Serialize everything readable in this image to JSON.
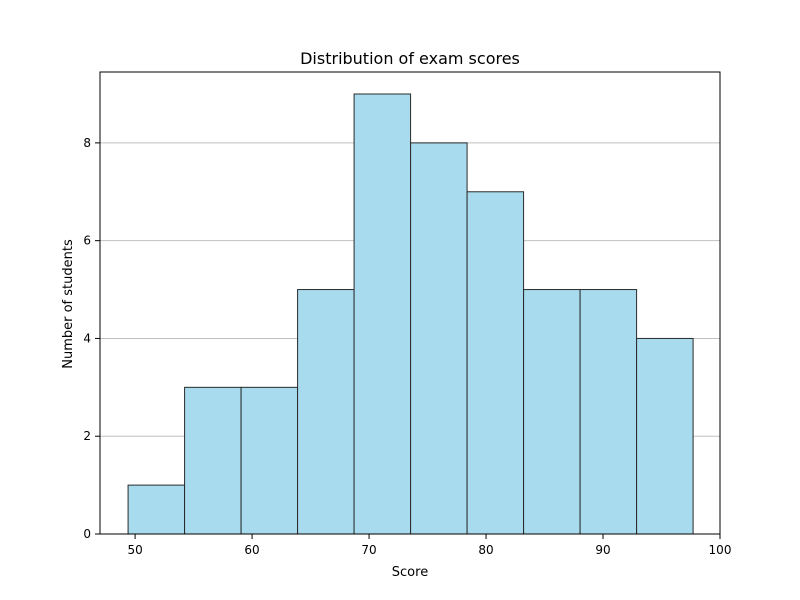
{
  "chart_data": {
    "type": "bar",
    "subtype": "histogram",
    "title": "Distribution of exam scores",
    "xlabel": "Score",
    "ylabel": "Number of students",
    "bins": [
      {
        "start": 49.4,
        "end": 54.23,
        "count": 1
      },
      {
        "start": 54.23,
        "end": 59.06,
        "count": 3
      },
      {
        "start": 59.06,
        "end": 63.89,
        "count": 3
      },
      {
        "start": 63.89,
        "end": 68.72,
        "count": 5
      },
      {
        "start": 68.72,
        "end": 73.55,
        "count": 9
      },
      {
        "start": 73.55,
        "end": 78.38,
        "count": 8
      },
      {
        "start": 78.38,
        "end": 83.21,
        "count": 7
      },
      {
        "start": 83.21,
        "end": 88.04,
        "count": 5
      },
      {
        "start": 88.04,
        "end": 92.87,
        "count": 5
      },
      {
        "start": 92.87,
        "end": 97.7,
        "count": 4
      }
    ],
    "xlim": [
      47.0,
      100.0
    ],
    "ylim": [
      0,
      9.45
    ],
    "xticks": [
      50,
      60,
      70,
      80,
      90,
      100
    ],
    "yticks": [
      0,
      2,
      4,
      6,
      8
    ],
    "grid": "horizontal",
    "colors": {
      "bar_fill": "#a8dbee",
      "bar_edge": "#2a2a2a",
      "grid": "#c0c0c0",
      "axis": "#000000"
    }
  }
}
